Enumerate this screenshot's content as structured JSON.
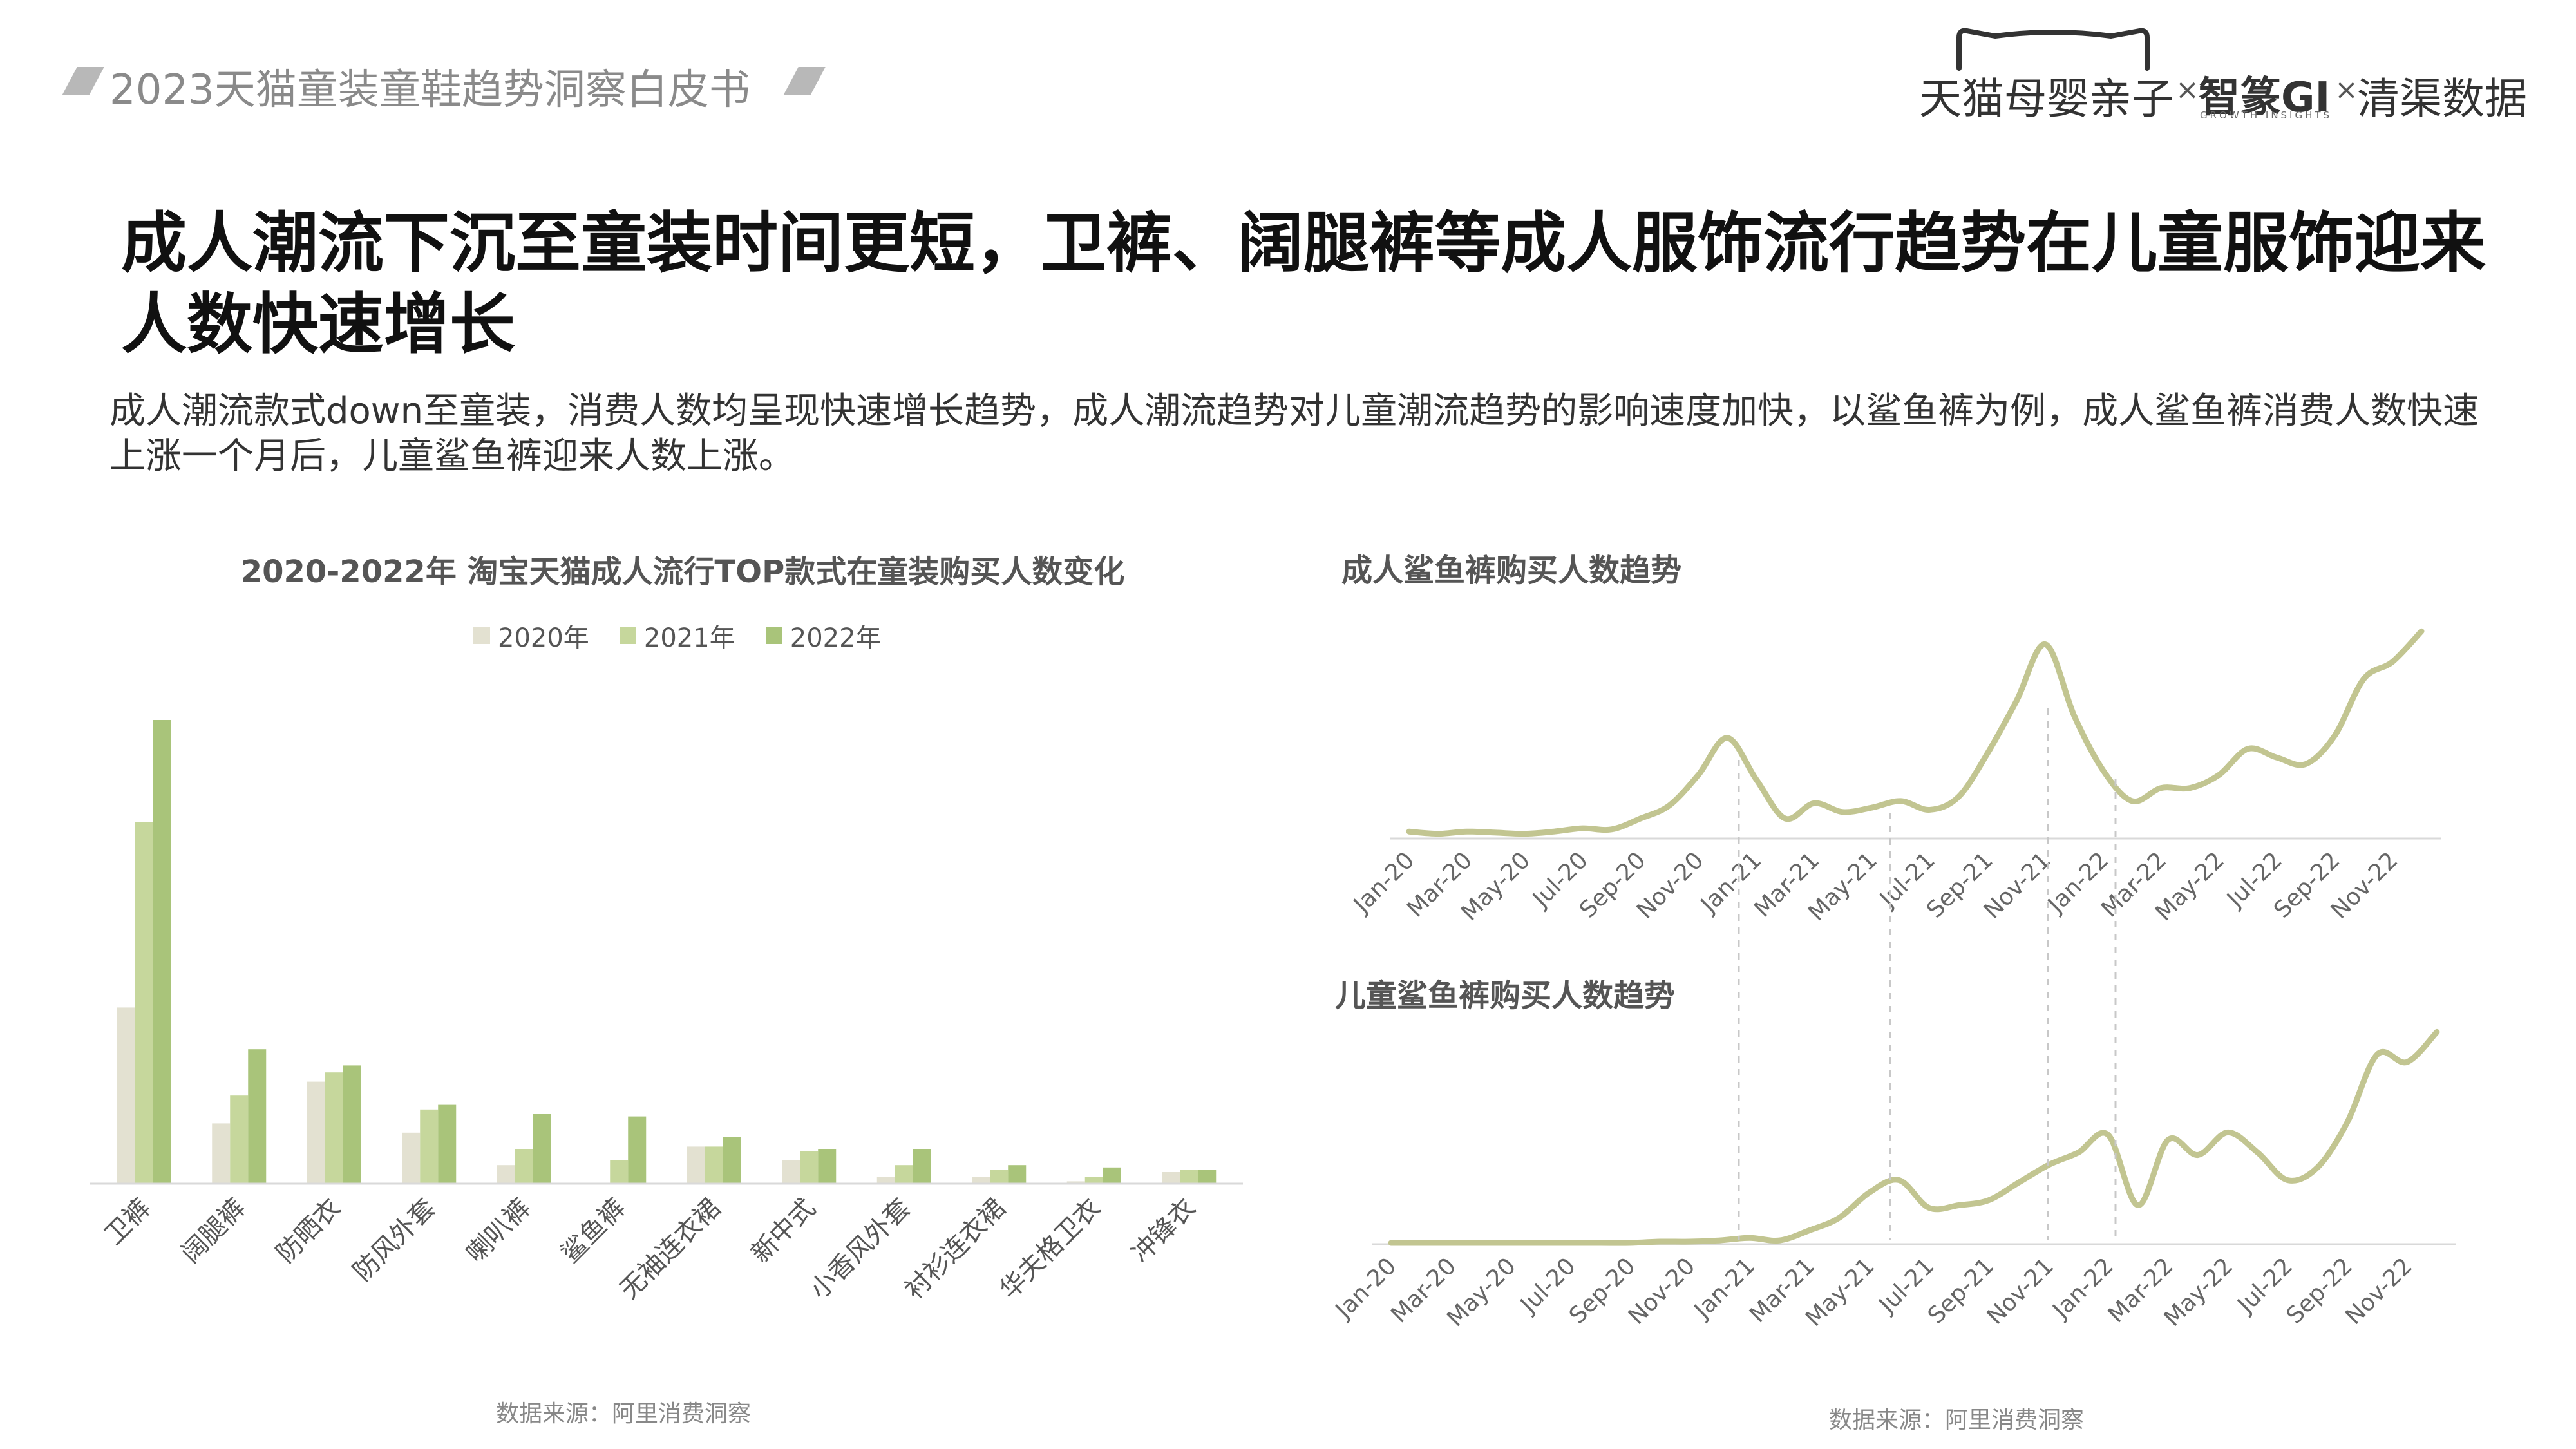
{
  "header": {
    "report_title": "2023天猫童装童鞋趋势洞察白皮书"
  },
  "logos": {
    "brand1": "天猫母婴亲子",
    "separator": "×",
    "brand2": "智篆GI",
    "brand2_sub": "GROWTH INSIGHTS",
    "brand3": "清渠数据"
  },
  "main": {
    "title": "成人潮流下沉至童装时间更短，卫裤、阔腿裤等成人服饰流行趋势在儿童服饰迎来人数快速增长",
    "description": "成人潮流款式down至童装，消费人数均呈现快速增长趋势，成人潮流趋势对儿童潮流趋势的影响速度加快，以鲨鱼裤为例，成人鲨鱼裤消费人数快速上涨一个月后，儿童鲨鱼裤迎来人数上涨。"
  },
  "colors": {
    "series_2020": "#e3e1d1",
    "series_2021": "#c6d79c",
    "series_2022": "#a9c47a",
    "line": "#c2c591",
    "axis": "#d9d9d9",
    "dashed": "#c8c8c8"
  },
  "chart_data": [
    {
      "type": "bar",
      "title": "2020-2022年 淘宝天猫成人流行TOP款式在童装购买人数变化",
      "legend_position": "top",
      "grid": false,
      "categories": [
        "卫裤",
        "阔腿裤",
        "防晒衣",
        "防风外套",
        "喇叭裤",
        "鲨鱼裤",
        "无袖连衣裙",
        "新中式",
        "小香风外套",
        "衬衫连衣裙",
        "华夫格卫衣",
        "冲锋衣"
      ],
      "series": [
        {
          "name": "2020年",
          "values": [
            38,
            13,
            22,
            11,
            4,
            0,
            8,
            5,
            1.5,
            1.5,
            0.5,
            2.5
          ]
        },
        {
          "name": "2021年",
          "values": [
            78,
            19,
            24,
            16,
            7.5,
            5,
            8,
            7,
            4,
            3,
            1.5,
            3
          ]
        },
        {
          "name": "2022年",
          "values": [
            100,
            29,
            25.5,
            17,
            15,
            14.5,
            10,
            7.5,
            7.5,
            4,
            3.5,
            3
          ]
        }
      ],
      "ylim": [
        0,
        100
      ]
    },
    {
      "type": "line",
      "title": "成人鲨鱼裤购买人数趋势",
      "grid": false,
      "x": [
        "Jan-20",
        "Feb-20",
        "Mar-20",
        "Apr-20",
        "May-20",
        "Jun-20",
        "Jul-20",
        "Aug-20",
        "Sep-20",
        "Oct-20",
        "Nov-20",
        "Dec-20",
        "Jan-21",
        "Feb-21",
        "Mar-21",
        "Apr-21",
        "May-21",
        "Jun-21",
        "Jul-21",
        "Aug-21",
        "Sep-21",
        "Oct-21",
        "Nov-21",
        "Dec-21",
        "Jan-22",
        "Feb-22",
        "Mar-22",
        "Apr-22",
        "May-22",
        "Jun-22",
        "Jul-22",
        "Aug-22",
        "Sep-22",
        "Oct-22",
        "Nov-22",
        "Dec-22"
      ],
      "tick_labels": [
        "Jan-20",
        "Mar-20",
        "May-20",
        "Jul-20",
        "Sep-20",
        "Nov-20",
        "Jan-21",
        "Mar-21",
        "May-21",
        "Jul-21",
        "Sep-21",
        "Nov-21",
        "Jan-22",
        "Mar-22",
        "May-22",
        "Jul-22",
        "Sep-22",
        "Nov-22"
      ],
      "values": [
        2,
        1,
        2,
        1.5,
        1,
        2,
        3.5,
        3,
        8,
        14,
        28,
        45,
        26,
        8,
        15,
        11,
        13,
        16,
        12,
        18,
        38,
        62,
        88,
        55,
        30,
        16,
        22,
        22,
        28,
        40,
        36,
        33,
        46,
        72,
        80,
        94
      ],
      "ylim": [
        0,
        100
      ]
    },
    {
      "type": "line",
      "title": "儿童鲨鱼裤购买人数趋势",
      "grid": false,
      "x": [
        "Jan-20",
        "Feb-20",
        "Mar-20",
        "Apr-20",
        "May-20",
        "Jun-20",
        "Jul-20",
        "Aug-20",
        "Sep-20",
        "Oct-20",
        "Nov-20",
        "Dec-20",
        "Jan-21",
        "Feb-21",
        "Mar-21",
        "Apr-21",
        "May-21",
        "Jun-21",
        "Jul-21",
        "Aug-21",
        "Sep-21",
        "Oct-21",
        "Nov-21",
        "Dec-21",
        "Jan-22",
        "Feb-22",
        "Mar-22",
        "Apr-22",
        "May-22",
        "Jun-22",
        "Jul-22",
        "Aug-22",
        "Sep-22",
        "Oct-22",
        "Nov-22",
        "Dec-22"
      ],
      "tick_labels": [
        "Jan-20",
        "Mar-20",
        "May-20",
        "Jul-20",
        "Sep-20",
        "Nov-20",
        "Jan-21",
        "Mar-21",
        "May-21",
        "Jul-21",
        "Sep-21",
        "Nov-21",
        "Jan-22",
        "Mar-22",
        "May-22",
        "Jul-22",
        "Sep-22",
        "Nov-22"
      ],
      "values": [
        0,
        0,
        0,
        0,
        0,
        0,
        0,
        0,
        0,
        0.5,
        0.5,
        1,
        2,
        1,
        5,
        10,
        20,
        25,
        14,
        15,
        17,
        24,
        31,
        36,
        43,
        15,
        41,
        35,
        44,
        36,
        25,
        30,
        48,
        75,
        72,
        84
      ],
      "ylim": [
        0,
        100
      ]
    }
  ],
  "sources": {
    "left": "数据来源：阿里消费洞察",
    "right": "数据来源：阿里消费洞察"
  }
}
